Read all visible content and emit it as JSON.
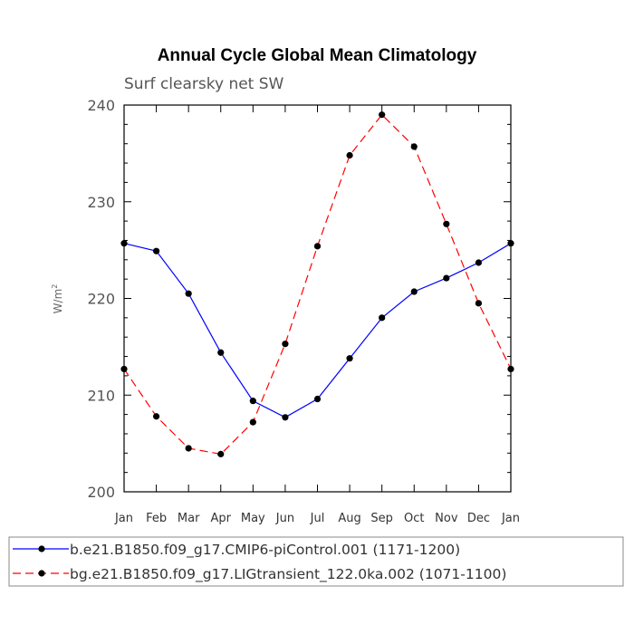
{
  "chart_data": {
    "type": "line",
    "title": "Annual Cycle Global Mean Climatology",
    "subtitle": "Surf clearsky net SW",
    "ylabel": "W/m",
    "ylabel_superscript": "2",
    "ylim": [
      200,
      240
    ],
    "yticks": [
      200,
      210,
      220,
      230,
      240
    ],
    "categories": [
      "Jan",
      "Feb",
      "Mar",
      "Apr",
      "May",
      "Jun",
      "Jul",
      "Aug",
      "Sep",
      "Oct",
      "Nov",
      "Dec",
      "Jan"
    ],
    "series": [
      {
        "name": "b.e21.B1850.f09_g17.CMIP6-piControl.001 (1171-1200)",
        "color": "#0000ff",
        "dash": "solid",
        "values": [
          225.7,
          224.9,
          220.5,
          214.4,
          209.4,
          207.7,
          209.6,
          213.8,
          218.0,
          220.7,
          222.1,
          223.7,
          225.7
        ]
      },
      {
        "name": "bg.e21.B1850.f09_g17.LIGtransient_122.0ka.002 (1071-1100)",
        "color": "#ff0000",
        "dash": "dashed",
        "values": [
          212.7,
          207.8,
          204.5,
          203.9,
          207.2,
          215.3,
          225.4,
          234.8,
          239.0,
          235.7,
          227.7,
          219.5,
          212.7
        ]
      }
    ]
  }
}
